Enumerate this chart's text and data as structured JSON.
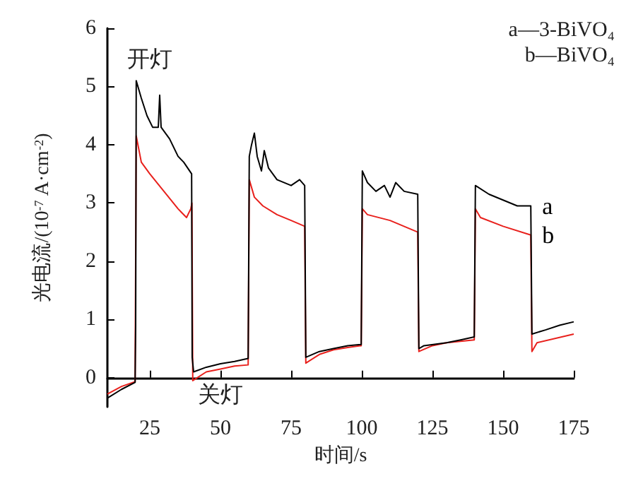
{
  "chart_data": {
    "type": "line",
    "xlabel": "时间/s",
    "ylabel": "光电流/(10$^{-7}$ A·cm$^{-2}$)",
    "xlim": [
      10,
      175
    ],
    "xticks": [
      25,
      50,
      75,
      100,
      125,
      150,
      175
    ],
    "ylim": [
      -0.5,
      6
    ],
    "yticks": [
      0,
      1,
      2,
      3,
      4,
      5,
      6
    ],
    "grid": false,
    "legend": false,
    "marker": "none",
    "line_style": "solid",
    "annotations": [
      "a—3-BiVO₄",
      "b—BiVO₄",
      "开灯",
      "关灯"
    ],
    "series": [
      {
        "name": "a",
        "color": "#000000",
        "x": [
          10,
          15,
          19.8,
          20,
          20.2,
          22,
          24,
          26,
          28,
          28.5,
          29,
          32,
          35,
          37,
          39.8,
          40,
          40.5,
          45,
          50,
          55,
          59.8,
          60.2,
          61,
          62,
          63,
          64.5,
          65.5,
          67,
          70,
          75,
          78,
          79.8,
          80.2,
          85,
          90,
          95,
          99.8,
          100.2,
          102,
          105,
          108,
          110,
          112,
          115,
          119.8,
          120.2,
          122,
          130,
          135,
          139.8,
          140.2,
          145,
          150,
          155,
          159.8,
          160.2,
          165,
          170,
          175
        ],
        "values": [
          -0.35,
          -0.2,
          -0.08,
          0.9,
          5.1,
          4.8,
          4.5,
          4.3,
          4.3,
          4.85,
          4.3,
          4.1,
          3.8,
          3.7,
          3.5,
          0.35,
          0.1,
          0.18,
          0.24,
          0.28,
          0.33,
          3.8,
          4.0,
          4.2,
          3.8,
          3.55,
          3.9,
          3.6,
          3.4,
          3.3,
          3.4,
          3.3,
          0.35,
          0.45,
          0.5,
          0.55,
          0.57,
          3.55,
          3.35,
          3.2,
          3.3,
          3.1,
          3.35,
          3.2,
          3.15,
          0.5,
          0.55,
          0.6,
          0.65,
          0.7,
          3.3,
          3.15,
          3.05,
          2.95,
          2.95,
          0.75,
          0.82,
          0.9,
          0.96
        ]
      },
      {
        "name": "b",
        "color": "#e8201c",
        "x": [
          10,
          15,
          19.8,
          20.2,
          22,
          25,
          30,
          35,
          38,
          39.5,
          39.9,
          40.2,
          45,
          50,
          55,
          59.8,
          60.2,
          62,
          65,
          70,
          75,
          79.8,
          80.2,
          85,
          90,
          95,
          99.8,
          100.2,
          102,
          110,
          119.8,
          120.2,
          125,
          130,
          139.8,
          140.2,
          142,
          150,
          159.8,
          160.2,
          162,
          175
        ],
        "values": [
          -0.28,
          -0.15,
          -0.07,
          4.15,
          3.7,
          3.5,
          3.2,
          2.9,
          2.75,
          2.9,
          3.0,
          -0.05,
          0.1,
          0.15,
          0.2,
          0.22,
          3.4,
          3.1,
          2.95,
          2.8,
          2.7,
          2.6,
          0.25,
          0.4,
          0.48,
          0.52,
          0.55,
          2.9,
          2.8,
          2.7,
          2.5,
          0.45,
          0.55,
          0.6,
          0.65,
          2.9,
          2.75,
          2.6,
          2.45,
          0.45,
          0.6,
          0.75
        ]
      }
    ]
  }
}
